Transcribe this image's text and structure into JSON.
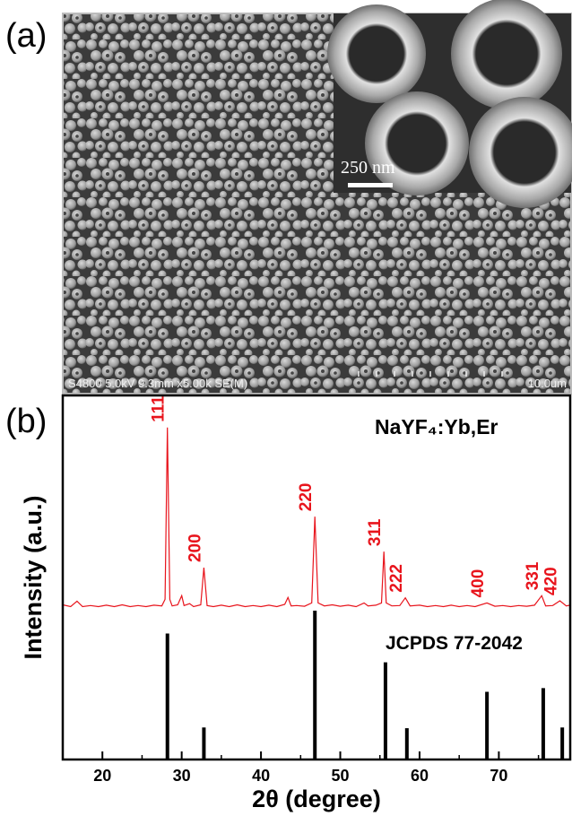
{
  "panel_a": {
    "label": "(a)",
    "inset_scale": "250 nm",
    "info": "S4800 5.0kV 9.3mm x5.00k SE(M)",
    "scale": "10.0um"
  },
  "chart_data": {
    "type": "line",
    "panel_label": "(b)",
    "xlabel": "2θ (degree)",
    "ylabel": "Intensity (a.u.)",
    "xlim": [
      15,
      79
    ],
    "ylim": [
      0,
      100
    ],
    "xticks": [
      20,
      30,
      40,
      50,
      60,
      70
    ],
    "xminorticks": [
      25,
      35,
      45,
      55,
      65,
      75
    ],
    "series": [
      {
        "name": "NaYF₄:Yb,Er",
        "type": "line",
        "color": "#e8141c",
        "x": [
          15,
          16,
          16.8,
          17.5,
          18.5,
          19.5,
          20.5,
          21.5,
          22.5,
          23.5,
          24.5,
          25.5,
          26.5,
          27.5,
          27.9,
          28.2,
          28.5,
          28.8,
          29.5,
          30,
          30.3,
          31,
          31.5,
          32.4,
          32.8,
          33.2,
          34,
          35,
          36,
          37,
          38,
          39,
          40,
          41,
          42,
          43,
          43.4,
          43.8,
          44.5,
          45.5,
          46.4,
          46.8,
          47.2,
          48,
          49,
          50,
          51,
          52,
          53,
          53.5,
          54.5,
          55.2,
          55.5,
          55.8,
          56.5,
          57.5,
          58.2,
          58.8,
          60,
          61,
          62,
          63,
          64,
          65,
          66,
          67,
          68.5,
          69.5,
          70.5,
          71.5,
          72.5,
          73.5,
          74.5,
          75.4,
          75.9,
          76.8,
          77.7,
          78.5,
          79
        ],
        "values": [
          42.5,
          42,
          43.5,
          42,
          42.3,
          42,
          42.4,
          42,
          42.5,
          42,
          42.3,
          42,
          42.4,
          42.2,
          44,
          91.2,
          44,
          42.2,
          42.5,
          45,
          42.3,
          42.8,
          42,
          42.5,
          52.7,
          42.3,
          42,
          42.4,
          42,
          42.5,
          42,
          42.3,
          42,
          42.4,
          42,
          42.6,
          44.5,
          42.2,
          42.3,
          42.1,
          43,
          66.7,
          43,
          42.2,
          42.5,
          42.1,
          42.4,
          42,
          43,
          42.2,
          42.4,
          43,
          57.1,
          43,
          42.2,
          42.3,
          44.4,
          42.2,
          42.4,
          42,
          42.3,
          42,
          42.4,
          42,
          42.3,
          42,
          43,
          42.1,
          42.3,
          42,
          42.3,
          42.1,
          42.4,
          45,
          42.2,
          42.3,
          43.6,
          42.2,
          42.4
        ],
        "peaks": [
          {
            "label": "111",
            "x": 28.2,
            "y": 91.2
          },
          {
            "label": "200",
            "x": 32.8,
            "y": 52.7
          },
          {
            "label": "220",
            "x": 46.8,
            "y": 66.7
          },
          {
            "label": "311",
            "x": 55.5,
            "y": 57.1
          },
          {
            "label": "222",
            "x": 58.2,
            "y": 44.4
          },
          {
            "label": "400",
            "x": 68.5,
            "y": 43
          },
          {
            "label": "331",
            "x": 75.4,
            "y": 45
          },
          {
            "label": "420",
            "x": 77.7,
            "y": 43.6
          }
        ]
      },
      {
        "name": "JCPDS 77-2042",
        "type": "stick",
        "color": "#000000",
        "x": [
          28.2,
          32.8,
          46.8,
          55.7,
          58.4,
          68.5,
          75.6,
          78
        ],
        "values": [
          34.6,
          8.8,
          40.9,
          26.7,
          8.6,
          18.6,
          19.6,
          8.8
        ]
      }
    ]
  }
}
